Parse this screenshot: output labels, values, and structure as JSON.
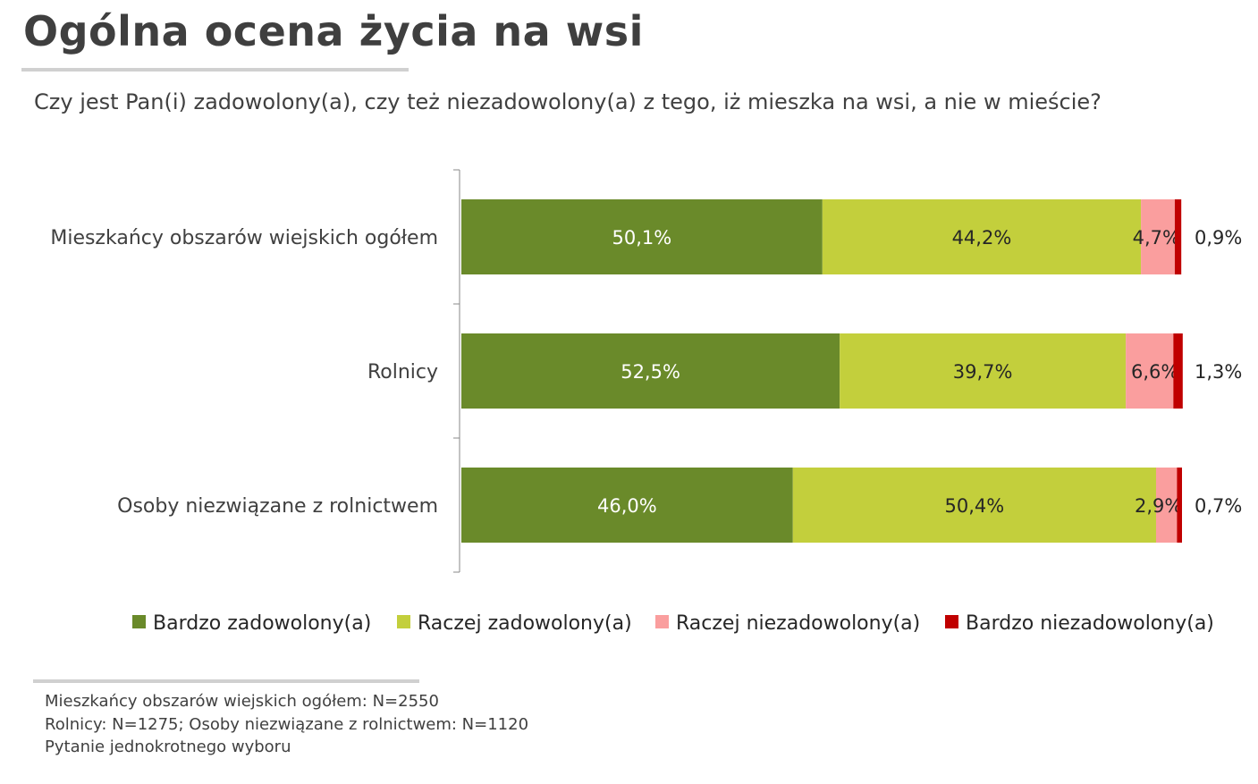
{
  "title": "Ogólna ocena życia na wsi",
  "subtitle": "Czy jest Pan(i) zadowolony(a), czy też niezadowolony(a) z tego, iż mieszka na wsi, a nie w mieście?",
  "chart_data": {
    "type": "bar",
    "orientation": "horizontal",
    "stacked": true,
    "categories": [
      "Mieszkańcy obszarów wiejskich ogółem",
      "Rolnicy",
      "Osoby niezwiązane z rolnictwem"
    ],
    "series": [
      {
        "name": "Bardzo zadowolony(a)",
        "color": "#6a8a2a",
        "values": [
          50.1,
          52.5,
          46.0
        ],
        "labels": [
          "50,1%",
          "52,5%",
          "46,0%"
        ]
      },
      {
        "name": "Raczej zadowolony(a)",
        "color": "#c3cf3c",
        "values": [
          44.2,
          39.7,
          50.4
        ],
        "labels": [
          "44,2%",
          "39,7%",
          "50,4%"
        ]
      },
      {
        "name": "Raczej niezadowolony(a)",
        "color": "#fa9e9e",
        "values": [
          4.7,
          6.6,
          2.9
        ],
        "labels": [
          "4,7%",
          "6,6%",
          "2,9%"
        ]
      },
      {
        "name": "Bardzo niezadowolony(a)",
        "color": "#c00000",
        "values": [
          0.9,
          1.3,
          0.7
        ],
        "labels": [
          "0,9%",
          "1,3%",
          "0,7%"
        ]
      }
    ],
    "xlim": [
      0,
      100
    ],
    "legend": "bottom",
    "grid": false
  },
  "footnotes": [
    "Mieszkańcy obszarów wiejskich ogółem: N=2550",
    "Rolnicy: N=1275; Osoby niezwiązane z rolnictwem: N=1120",
    "Pytanie jednokrotnego wyboru"
  ]
}
